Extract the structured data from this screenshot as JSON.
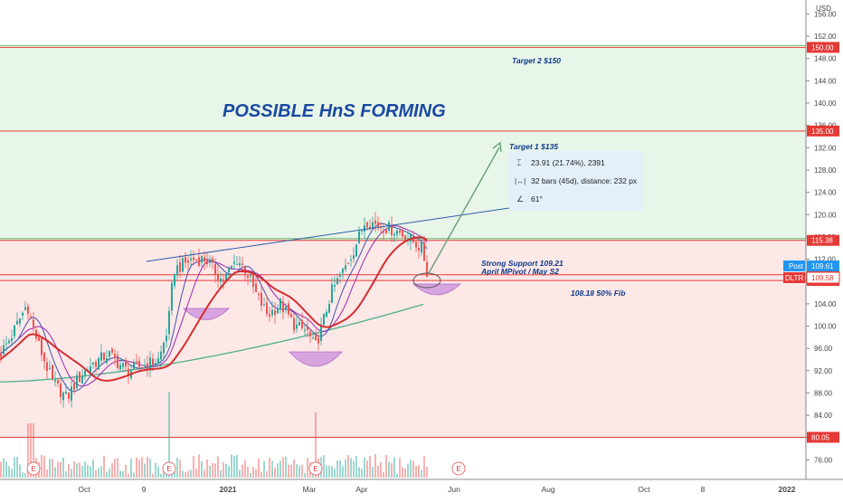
{
  "chart_data": {
    "type": "candlestick",
    "currency": "USD",
    "y_axis": {
      "min": 72.5,
      "max": 158.5,
      "ticks": [
        76,
        80,
        84,
        88,
        92,
        96,
        100,
        104,
        108,
        112,
        116,
        120,
        124,
        128,
        132,
        136,
        140,
        144,
        148,
        152,
        156
      ]
    },
    "x_axis": {
      "ticks": [
        "Oct",
        "9",
        "2021",
        "Mar",
        "Apr",
        "Jun",
        "Aug",
        "Oct",
        "8",
        "2022"
      ]
    },
    "title_annotation": "POSSIBLE HnS FORMING",
    "horizontal_levels": [
      {
        "value": 150.0,
        "label": "150.00",
        "color": "#e53935"
      },
      {
        "value": 135.0,
        "label": "135.00",
        "color": "#e53935"
      },
      {
        "value": 115.38,
        "label": "115.38",
        "color": "#e53935"
      },
      {
        "value": 109.21,
        "label": "109.21",
        "color": "#e53935"
      },
      {
        "value": 108.18,
        "label": "108.18",
        "color": "#e53935"
      },
      {
        "value": 80.05,
        "label": "80.05",
        "color": "#e53935"
      }
    ],
    "price_badges": {
      "post": {
        "label": "Post",
        "value": "109.61",
        "color": "#2196f3"
      },
      "ticker": {
        "label": "DLTR",
        "value": "109.58",
        "color": "#e53935"
      }
    },
    "annotations": {
      "target2": "Target 2 $150",
      "target1": "Target 1 $135",
      "support": "Strong Support 109.21",
      "pivot": "April MPivot / May S2",
      "fib": "108.18 50% Fib"
    },
    "measure_box": {
      "line1": "23.91 (21.74%), 2391",
      "line2": "32 bars (45d), distance: 232 px",
      "line3": "61°"
    },
    "earnings_marker": "E",
    "colors": {
      "up": "#26a69a",
      "down": "#ef5350",
      "target_zone": "#e8f5e9",
      "support_zone": "#fde8e8",
      "ma_fast": "#d32f2f",
      "ma_slow": "#4caf8a",
      "ma_short": "#3f51b5",
      "ma_mid": "#9c27b0",
      "trendline": "#2e5fa8",
      "hns_title": "#1a4aa0",
      "annotation_text": "#0d3a8a",
      "shoulder_fill": "#d8a4e0",
      "projection": "#5d9b6d",
      "measure_bg": "#e3f0fb"
    }
  }
}
